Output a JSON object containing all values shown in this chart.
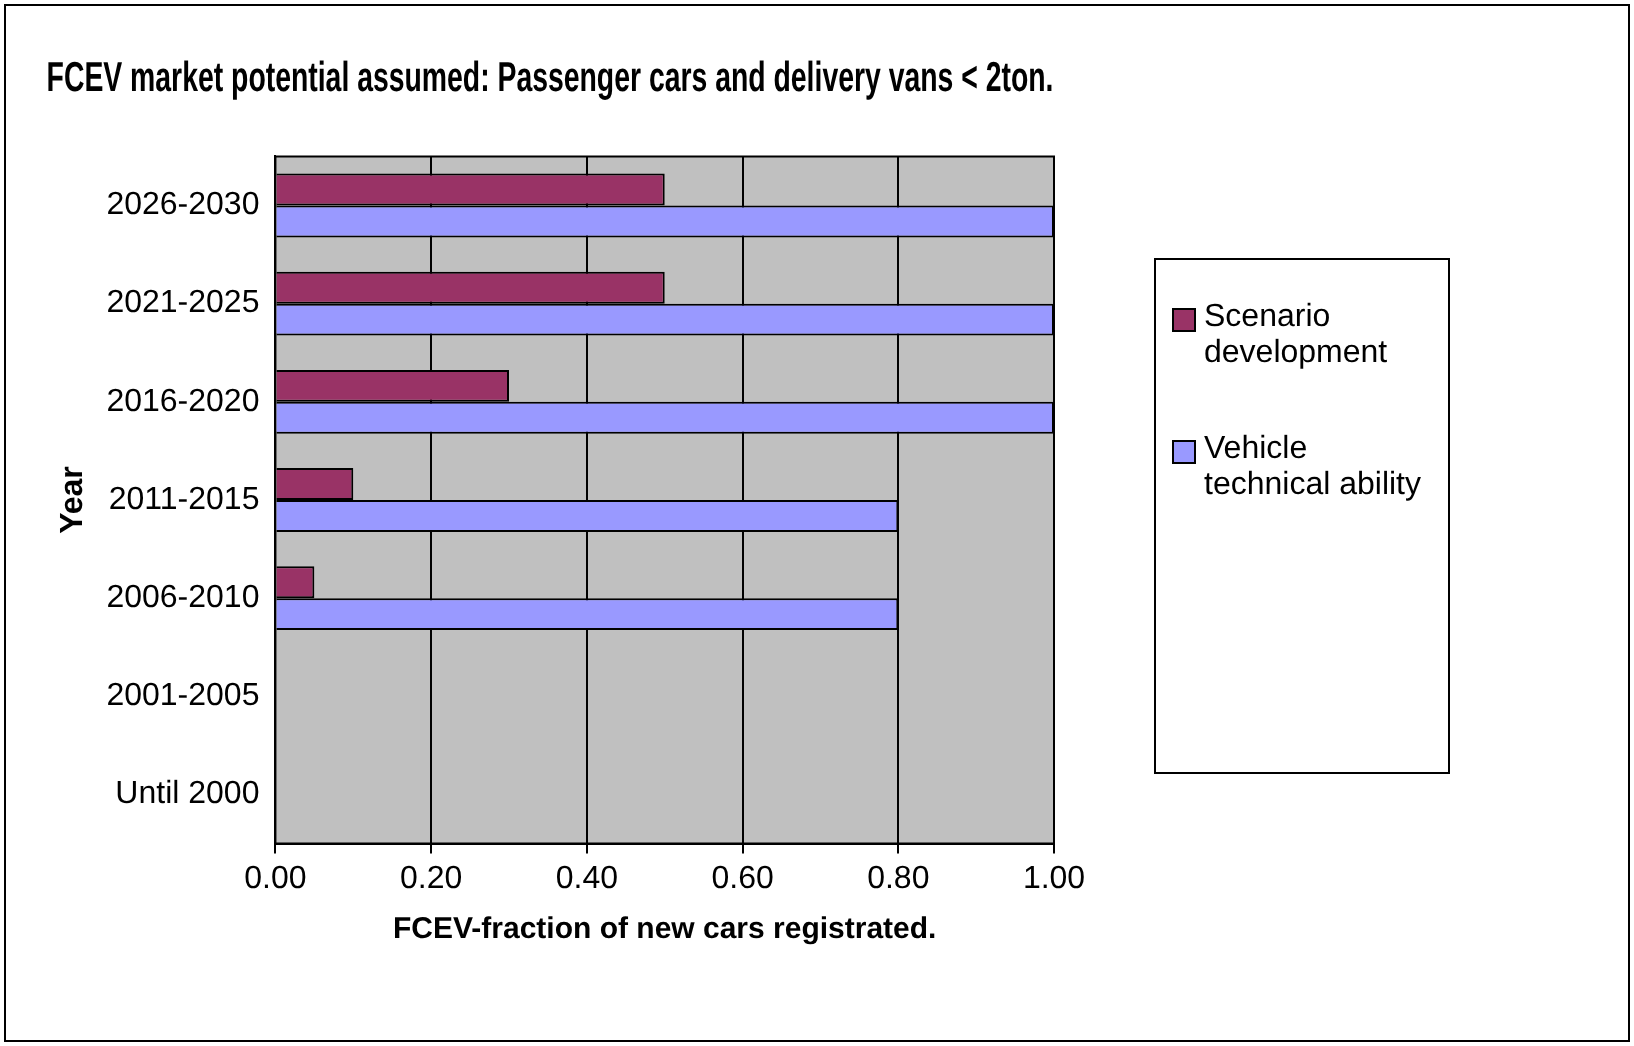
{
  "chart_data": {
    "type": "bar",
    "orientation": "horizontal",
    "title": "FCEV market potential assumed: Passenger cars and delivery vans < 2ton.",
    "xlabel": "FCEV-fraction of new cars registrated.",
    "ylabel": "Year",
    "categories": [
      "2026-2030",
      "2021-2025",
      "2016-2020",
      "2011-2015",
      "2006-2010",
      "2001-2005",
      "Until 2000"
    ],
    "series": [
      {
        "name": "Scenario development",
        "color": "#993366",
        "values": [
          0.5,
          0.5,
          0.3,
          0.1,
          0.05,
          0,
          0
        ]
      },
      {
        "name": "Vehicle technical ability",
        "color": "#9999ff",
        "values": [
          1,
          1,
          1,
          0.8,
          0.8,
          0,
          0
        ]
      }
    ],
    "xlim": [
      0,
      1
    ],
    "xticks": [
      {
        "value": 0,
        "label": "0.00"
      },
      {
        "value": 0.2,
        "label": "0.20"
      },
      {
        "value": 0.4,
        "label": "0.40"
      },
      {
        "value": 0.6,
        "label": "0.60"
      },
      {
        "value": 0.8,
        "label": "0.80"
      },
      {
        "value": 1,
        "label": "1.00"
      }
    ],
    "grid": "x",
    "legend": "right"
  }
}
